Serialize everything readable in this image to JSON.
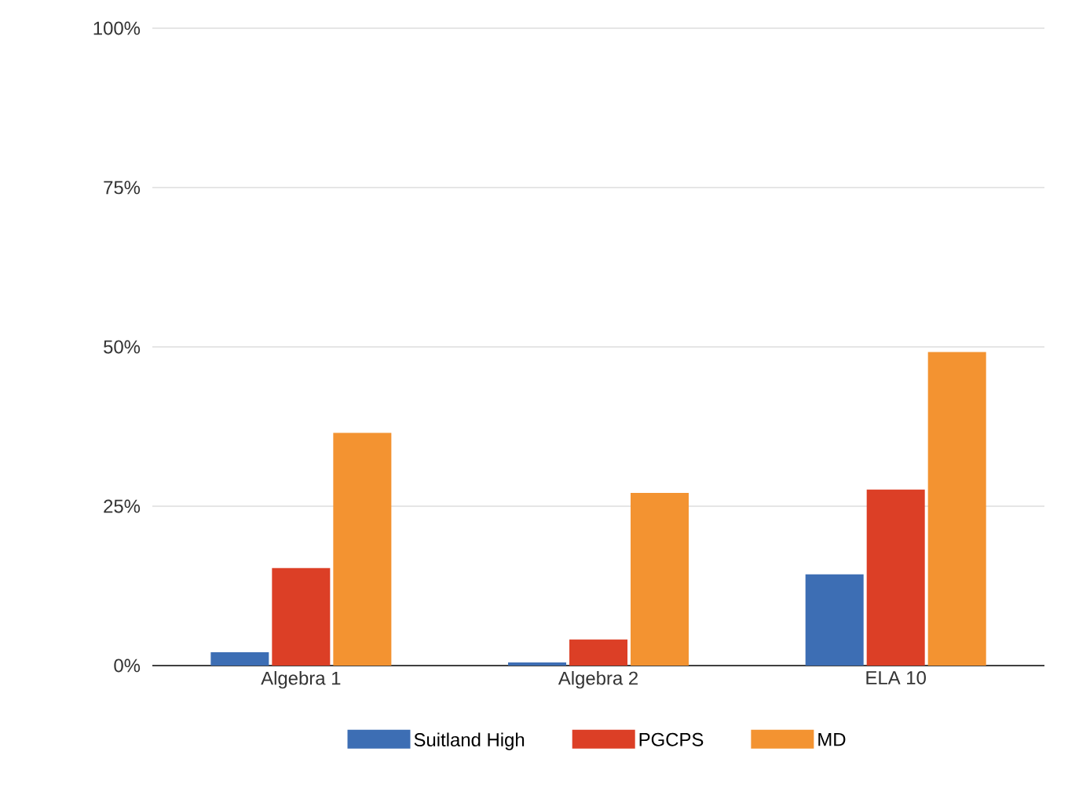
{
  "chart_data": {
    "type": "bar",
    "categories": [
      "Algebra 1",
      "Algebra 2",
      "ELA 10"
    ],
    "series": [
      {
        "name": "Suitland High",
        "color": "#3d6eb4",
        "values": [
          2.1,
          0.5,
          14.3
        ]
      },
      {
        "name": "PGCPS",
        "color": "#dc3f26",
        "values": [
          15.3,
          4.1,
          27.6
        ]
      },
      {
        "name": "MD",
        "color": "#f39331",
        "values": [
          36.5,
          27.1,
          49.2
        ]
      }
    ],
    "ylim": [
      0,
      100
    ],
    "yticks": [
      {
        "value": 0,
        "label": "0%"
      },
      {
        "value": 25,
        "label": "25%"
      },
      {
        "value": 50,
        "label": "50%"
      },
      {
        "value": 75,
        "label": "75%"
      },
      {
        "value": 100,
        "label": "100%"
      }
    ],
    "grid": "y",
    "legend": "bottom"
  }
}
